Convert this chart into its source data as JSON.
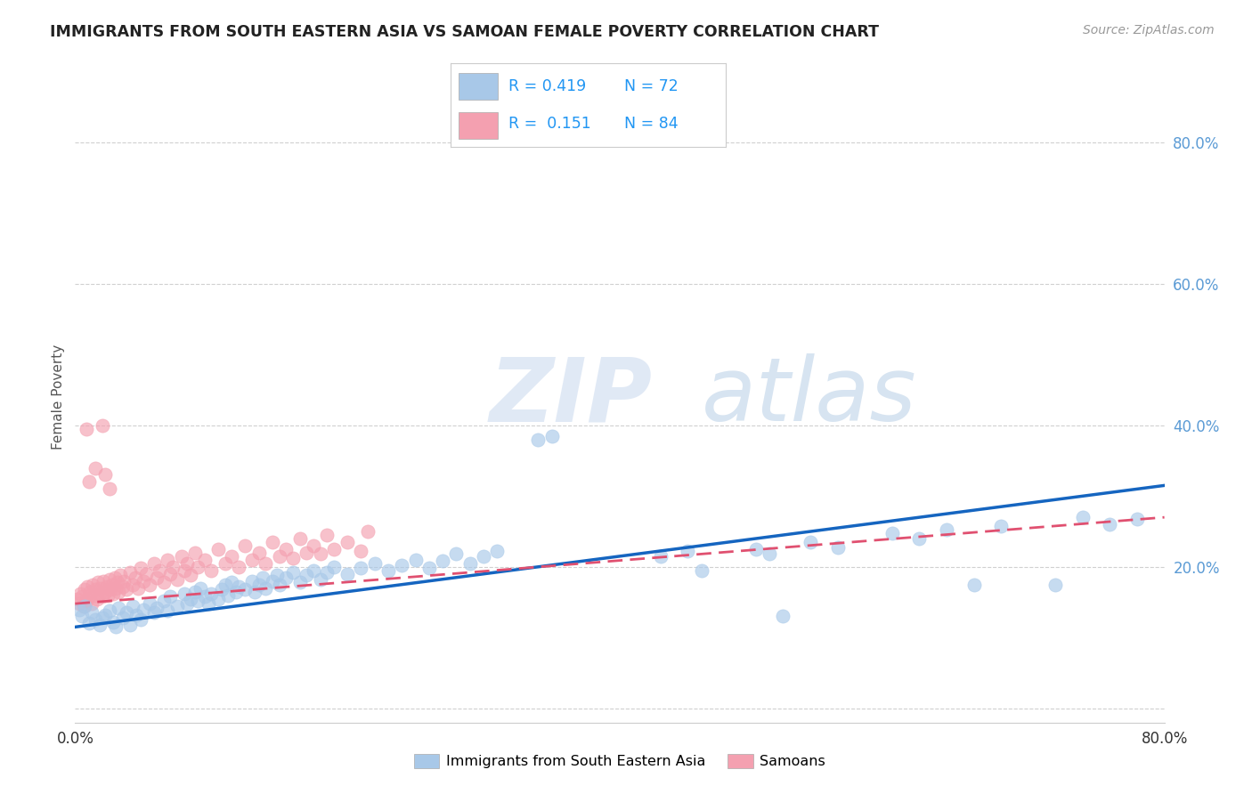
{
  "title": "IMMIGRANTS FROM SOUTH EASTERN ASIA VS SAMOAN FEMALE POVERTY CORRELATION CHART",
  "source": "Source: ZipAtlas.com",
  "ylabel": "Female Poverty",
  "watermark_zip": "ZIP",
  "watermark_atlas": "atlas",
  "legend_label_blue": "Immigrants from South Eastern Asia",
  "legend_label_pink": "Samoans",
  "xlim": [
    0.0,
    0.8
  ],
  "ylim": [
    -0.02,
    0.9
  ],
  "ytick_vals": [
    0.0,
    0.2,
    0.4,
    0.6,
    0.8
  ],
  "ytick_labels": [
    "",
    "20.0%",
    "40.0%",
    "60.0%",
    "80.0%"
  ],
  "xtick_vals": [
    0.0,
    0.8
  ],
  "xtick_labels": [
    "0.0%",
    "80.0%"
  ],
  "background_color": "#ffffff",
  "blue_dot_color": "#a8c8e8",
  "pink_dot_color": "#f4a0b0",
  "blue_line_color": "#1565C0",
  "pink_line_color": "#e05070",
  "pink_line_dash": [
    6,
    3
  ],
  "grid_color": "#d0d0d0",
  "title_color": "#222222",
  "ytick_color": "#5b9bd5",
  "legend_r_color": "#2196F3",
  "legend_n_color": "#333333",
  "blue_trend_x": [
    0.0,
    0.8
  ],
  "blue_trend_y": [
    0.115,
    0.315
  ],
  "pink_trend_x": [
    0.0,
    0.8
  ],
  "pink_trend_y": [
    0.148,
    0.27
  ],
  "blue_scatter": [
    [
      0.003,
      0.14
    ],
    [
      0.005,
      0.13
    ],
    [
      0.007,
      0.145
    ],
    [
      0.01,
      0.12
    ],
    [
      0.012,
      0.135
    ],
    [
      0.015,
      0.125
    ],
    [
      0.018,
      0.118
    ],
    [
      0.02,
      0.128
    ],
    [
      0.022,
      0.132
    ],
    [
      0.025,
      0.138
    ],
    [
      0.028,
      0.122
    ],
    [
      0.03,
      0.115
    ],
    [
      0.032,
      0.142
    ],
    [
      0.035,
      0.128
    ],
    [
      0.038,
      0.135
    ],
    [
      0.04,
      0.118
    ],
    [
      0.042,
      0.145
    ],
    [
      0.045,
      0.132
    ],
    [
      0.048,
      0.125
    ],
    [
      0.05,
      0.14
    ],
    [
      0.055,
      0.148
    ],
    [
      0.058,
      0.135
    ],
    [
      0.06,
      0.142
    ],
    [
      0.065,
      0.152
    ],
    [
      0.068,
      0.138
    ],
    [
      0.07,
      0.158
    ],
    [
      0.075,
      0.145
    ],
    [
      0.08,
      0.162
    ],
    [
      0.082,
      0.148
    ],
    [
      0.085,
      0.155
    ],
    [
      0.088,
      0.165
    ],
    [
      0.09,
      0.152
    ],
    [
      0.092,
      0.17
    ],
    [
      0.095,
      0.158
    ],
    [
      0.098,
      0.148
    ],
    [
      0.1,
      0.162
    ],
    [
      0.105,
      0.155
    ],
    [
      0.108,
      0.168
    ],
    [
      0.11,
      0.175
    ],
    [
      0.112,
      0.16
    ],
    [
      0.115,
      0.178
    ],
    [
      0.118,
      0.165
    ],
    [
      0.12,
      0.172
    ],
    [
      0.125,
      0.168
    ],
    [
      0.13,
      0.18
    ],
    [
      0.132,
      0.165
    ],
    [
      0.135,
      0.175
    ],
    [
      0.138,
      0.185
    ],
    [
      0.14,
      0.17
    ],
    [
      0.145,
      0.18
    ],
    [
      0.148,
      0.188
    ],
    [
      0.15,
      0.175
    ],
    [
      0.155,
      0.185
    ],
    [
      0.16,
      0.192
    ],
    [
      0.165,
      0.178
    ],
    [
      0.17,
      0.188
    ],
    [
      0.175,
      0.195
    ],
    [
      0.18,
      0.182
    ],
    [
      0.185,
      0.192
    ],
    [
      0.19,
      0.2
    ],
    [
      0.2,
      0.19
    ],
    [
      0.21,
      0.198
    ],
    [
      0.22,
      0.205
    ],
    [
      0.23,
      0.195
    ],
    [
      0.24,
      0.202
    ],
    [
      0.25,
      0.21
    ],
    [
      0.26,
      0.198
    ],
    [
      0.27,
      0.208
    ],
    [
      0.28,
      0.218
    ],
    [
      0.29,
      0.205
    ],
    [
      0.3,
      0.215
    ],
    [
      0.31,
      0.222
    ],
    [
      0.34,
      0.38
    ],
    [
      0.35,
      0.385
    ],
    [
      0.43,
      0.215
    ],
    [
      0.45,
      0.222
    ],
    [
      0.46,
      0.195
    ],
    [
      0.5,
      0.225
    ],
    [
      0.51,
      0.218
    ],
    [
      0.52,
      0.13
    ],
    [
      0.54,
      0.235
    ],
    [
      0.56,
      0.228
    ],
    [
      0.6,
      0.248
    ],
    [
      0.62,
      0.24
    ],
    [
      0.64,
      0.252
    ],
    [
      0.66,
      0.175
    ],
    [
      0.68,
      0.258
    ],
    [
      0.72,
      0.175
    ],
    [
      0.74,
      0.27
    ],
    [
      0.76,
      0.26
    ],
    [
      0.78,
      0.268
    ]
  ],
  "pink_scatter": [
    [
      0.002,
      0.155
    ],
    [
      0.003,
      0.148
    ],
    [
      0.004,
      0.162
    ],
    [
      0.005,
      0.158
    ],
    [
      0.006,
      0.145
    ],
    [
      0.007,
      0.168
    ],
    [
      0.008,
      0.152
    ],
    [
      0.009,
      0.172
    ],
    [
      0.01,
      0.158
    ],
    [
      0.011,
      0.165
    ],
    [
      0.012,
      0.148
    ],
    [
      0.013,
      0.175
    ],
    [
      0.014,
      0.16
    ],
    [
      0.015,
      0.168
    ],
    [
      0.016,
      0.155
    ],
    [
      0.017,
      0.178
    ],
    [
      0.018,
      0.162
    ],
    [
      0.019,
      0.17
    ],
    [
      0.02,
      0.158
    ],
    [
      0.021,
      0.18
    ],
    [
      0.022,
      0.165
    ],
    [
      0.023,
      0.172
    ],
    [
      0.024,
      0.16
    ],
    [
      0.025,
      0.182
    ],
    [
      0.026,
      0.168
    ],
    [
      0.027,
      0.175
    ],
    [
      0.028,
      0.162
    ],
    [
      0.029,
      0.185
    ],
    [
      0.03,
      0.17
    ],
    [
      0.031,
      0.178
    ],
    [
      0.032,
      0.165
    ],
    [
      0.033,
      0.188
    ],
    [
      0.035,
      0.172
    ],
    [
      0.036,
      0.18
    ],
    [
      0.038,
      0.168
    ],
    [
      0.04,
      0.192
    ],
    [
      0.042,
      0.175
    ],
    [
      0.044,
      0.185
    ],
    [
      0.046,
      0.17
    ],
    [
      0.048,
      0.198
    ],
    [
      0.05,
      0.18
    ],
    [
      0.052,
      0.19
    ],
    [
      0.055,
      0.175
    ],
    [
      0.058,
      0.205
    ],
    [
      0.06,
      0.185
    ],
    [
      0.062,
      0.195
    ],
    [
      0.065,
      0.178
    ],
    [
      0.068,
      0.21
    ],
    [
      0.07,
      0.19
    ],
    [
      0.072,
      0.2
    ],
    [
      0.075,
      0.182
    ],
    [
      0.078,
      0.215
    ],
    [
      0.08,
      0.195
    ],
    [
      0.082,
      0.205
    ],
    [
      0.085,
      0.188
    ],
    [
      0.088,
      0.22
    ],
    [
      0.09,
      0.2
    ],
    [
      0.095,
      0.21
    ],
    [
      0.1,
      0.195
    ],
    [
      0.105,
      0.225
    ],
    [
      0.11,
      0.205
    ],
    [
      0.115,
      0.215
    ],
    [
      0.12,
      0.2
    ],
    [
      0.125,
      0.23
    ],
    [
      0.13,
      0.21
    ],
    [
      0.135,
      0.22
    ],
    [
      0.14,
      0.205
    ],
    [
      0.145,
      0.235
    ],
    [
      0.15,
      0.215
    ],
    [
      0.155,
      0.225
    ],
    [
      0.16,
      0.212
    ],
    [
      0.165,
      0.24
    ],
    [
      0.17,
      0.22
    ],
    [
      0.175,
      0.23
    ],
    [
      0.18,
      0.218
    ],
    [
      0.185,
      0.245
    ],
    [
      0.19,
      0.225
    ],
    [
      0.2,
      0.235
    ],
    [
      0.21,
      0.222
    ],
    [
      0.215,
      0.25
    ],
    [
      0.02,
      0.4
    ],
    [
      0.015,
      0.34
    ],
    [
      0.01,
      0.32
    ],
    [
      0.008,
      0.395
    ],
    [
      0.025,
      0.31
    ],
    [
      0.022,
      0.33
    ]
  ]
}
